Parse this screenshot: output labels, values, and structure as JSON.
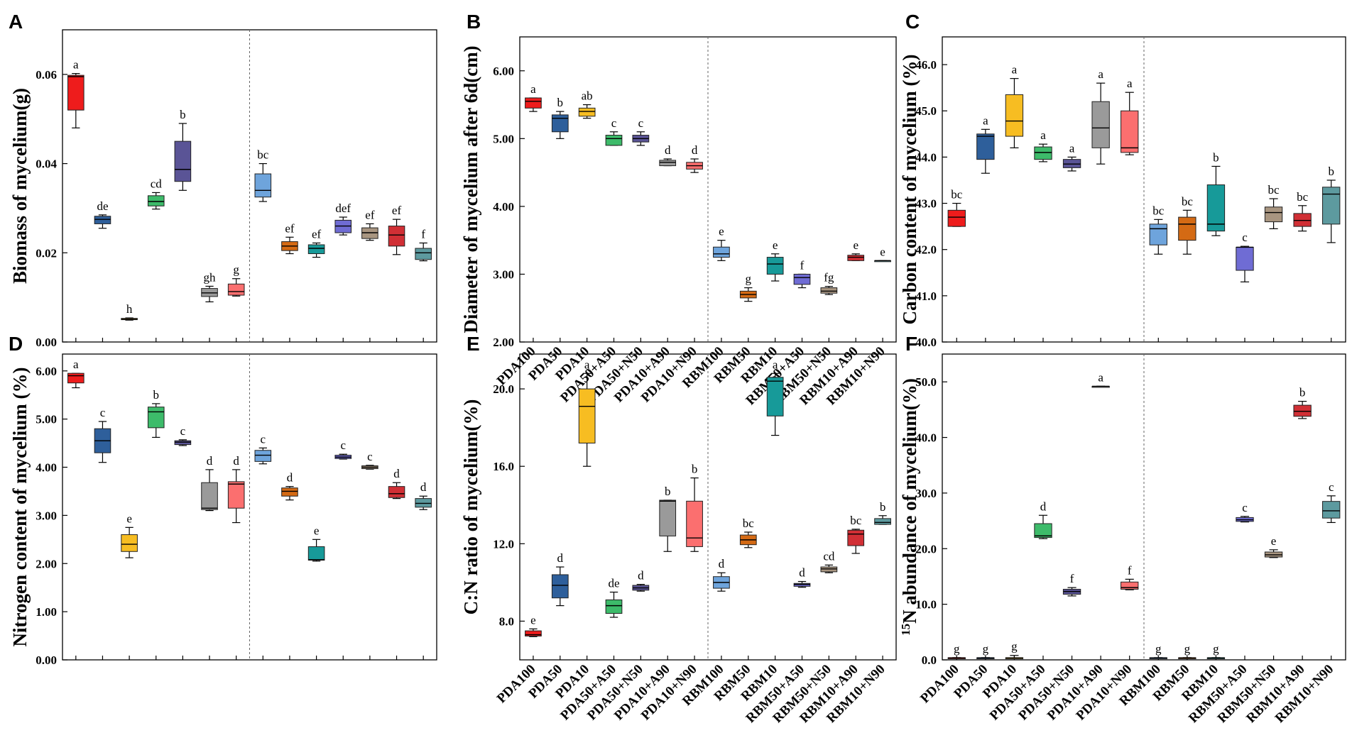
{
  "figure": {
    "categories": [
      "PDA100",
      "PDA50",
      "PDA10",
      "PDA50+A50",
      "PDA50+N50",
      "PDA10+A90",
      "PDA10+N90",
      "RBM100",
      "RBM50",
      "RBM10",
      "RBM50+A50",
      "RBM50+N50",
      "RBM10+A90",
      "RBM10+N90"
    ],
    "box_colors": [
      "#ee1c1c",
      "#2e5f9b",
      "#f7bd22",
      "#3dbb6a",
      "#5a5496",
      "#9a9a9a",
      "#fb6f6f",
      "#6ea4dc",
      "#d46a14",
      "#179a99",
      "#6f6cd4",
      "#a89580",
      "#d12f35",
      "#5d9a9f"
    ],
    "separator_style": "dashed"
  },
  "chart_data": [
    {
      "panel": "A",
      "type": "box",
      "ylabel": "Biomass of mycelium(g)",
      "ylim": [
        0,
        0.07
      ],
      "yticks": [
        0,
        0.02,
        0.04,
        0.06
      ],
      "ytick_labels": [
        "0.00",
        "0.02",
        "0.04",
        "0.06"
      ],
      "show_xlabels": false,
      "boxes": [
        {
          "min": 0.048,
          "q1": 0.052,
          "median": 0.0595,
          "q3": 0.0598,
          "max": 0.0602,
          "label": "a"
        },
        {
          "min": 0.0255,
          "q1": 0.0265,
          "median": 0.0275,
          "q3": 0.0282,
          "max": 0.0285,
          "label": "de"
        },
        {
          "min": 0.0049,
          "q1": 0.005,
          "median": 0.0051,
          "q3": 0.0053,
          "max": 0.0054,
          "label": "h"
        },
        {
          "min": 0.0298,
          "q1": 0.0305,
          "median": 0.0315,
          "q3": 0.0328,
          "max": 0.0335,
          "label": "cd"
        },
        {
          "min": 0.034,
          "q1": 0.036,
          "median": 0.0387,
          "q3": 0.045,
          "max": 0.049,
          "label": "b"
        },
        {
          "min": 0.009,
          "q1": 0.0102,
          "median": 0.011,
          "q3": 0.012,
          "max": 0.0125,
          "label": "gh"
        },
        {
          "min": 0.0103,
          "q1": 0.0105,
          "median": 0.0113,
          "q3": 0.013,
          "max": 0.0142,
          "label": "g"
        },
        {
          "min": 0.0315,
          "q1": 0.0325,
          "median": 0.034,
          "q3": 0.0377,
          "max": 0.04,
          "label": "bc"
        },
        {
          "min": 0.0198,
          "q1": 0.0205,
          "median": 0.0215,
          "q3": 0.0225,
          "max": 0.0235,
          "label": "ef"
        },
        {
          "min": 0.019,
          "q1": 0.0198,
          "median": 0.021,
          "q3": 0.0218,
          "max": 0.0222,
          "label": "ef"
        },
        {
          "min": 0.024,
          "q1": 0.0245,
          "median": 0.026,
          "q3": 0.0273,
          "max": 0.028,
          "label": "def"
        },
        {
          "min": 0.0228,
          "q1": 0.0232,
          "median": 0.0245,
          "q3": 0.0256,
          "max": 0.0265,
          "label": "ef"
        },
        {
          "min": 0.0196,
          "q1": 0.0215,
          "median": 0.024,
          "q3": 0.026,
          "max": 0.0275,
          "label": "ef"
        },
        {
          "min": 0.0182,
          "q1": 0.0185,
          "median": 0.02,
          "q3": 0.021,
          "max": 0.0222,
          "label": "f"
        }
      ]
    },
    {
      "panel": "B",
      "type": "box",
      "ylabel": "Diameter of mycelium after 6d(cm)",
      "ylim": [
        2.0,
        6.5
      ],
      "yticks": [
        2,
        3,
        4,
        5,
        6
      ],
      "ytick_labels": [
        "2.00",
        "3.00",
        "4.00",
        "5.00",
        "6.00"
      ],
      "show_xlabels": true,
      "boxes": [
        {
          "min": 5.4,
          "q1": 5.45,
          "median": 5.55,
          "q3": 5.6,
          "max": 5.6,
          "label": "a"
        },
        {
          "min": 5.0,
          "q1": 5.1,
          "median": 5.3,
          "q3": 5.35,
          "max": 5.4,
          "label": "b"
        },
        {
          "min": 5.3,
          "q1": 5.33,
          "median": 5.4,
          "q3": 5.45,
          "max": 5.5,
          "label": "ab"
        },
        {
          "min": 4.9,
          "q1": 4.9,
          "median": 5.0,
          "q3": 5.05,
          "max": 5.1,
          "label": "c"
        },
        {
          "min": 4.9,
          "q1": 4.95,
          "median": 5.0,
          "q3": 5.05,
          "max": 5.1,
          "label": "c"
        },
        {
          "min": 4.6,
          "q1": 4.6,
          "median": 4.65,
          "q3": 4.68,
          "max": 4.7,
          "label": "d"
        },
        {
          "min": 4.5,
          "q1": 4.55,
          "median": 4.6,
          "q3": 4.65,
          "max": 4.7,
          "label": "d"
        },
        {
          "min": 3.2,
          "q1": 3.25,
          "median": 3.3,
          "q3": 3.4,
          "max": 3.5,
          "label": "e"
        },
        {
          "min": 2.6,
          "q1": 2.65,
          "median": 2.7,
          "q3": 2.75,
          "max": 2.8,
          "label": "g"
        },
        {
          "min": 2.9,
          "q1": 3.0,
          "median": 3.15,
          "q3": 3.25,
          "max": 3.3,
          "label": "e"
        },
        {
          "min": 2.8,
          "q1": 2.85,
          "median": 2.95,
          "q3": 3.0,
          "max": 3.0,
          "label": "f"
        },
        {
          "min": 2.7,
          "q1": 2.72,
          "median": 2.75,
          "q3": 2.8,
          "max": 2.82,
          "label": "fg"
        },
        {
          "min": 3.2,
          "q1": 3.2,
          "median": 3.25,
          "q3": 3.28,
          "max": 3.3,
          "label": "e"
        },
        {
          "min": 3.2,
          "q1": 3.2,
          "median": 3.2,
          "q3": 3.2,
          "max": 3.2,
          "label": "e"
        }
      ]
    },
    {
      "panel": "C",
      "type": "box",
      "ylabel": "Carbon content of mycelium (%)",
      "ylim": [
        40.0,
        46.6
      ],
      "yticks": [
        40,
        41,
        42,
        43,
        44,
        45,
        46
      ],
      "ytick_labels": [
        "40.0",
        "41.0",
        "42.0",
        "43.0",
        "44.0",
        "45.0",
        "46.0"
      ],
      "show_xlabels": false,
      "boxes": [
        {
          "min": 42.5,
          "q1": 42.5,
          "median": 42.7,
          "q3": 42.85,
          "max": 43.0,
          "label": "bc"
        },
        {
          "min": 43.65,
          "q1": 43.95,
          "median": 44.45,
          "q3": 44.5,
          "max": 44.6,
          "label": "a"
        },
        {
          "min": 44.2,
          "q1": 44.45,
          "median": 44.78,
          "q3": 45.35,
          "max": 45.7,
          "label": "a"
        },
        {
          "min": 43.9,
          "q1": 43.95,
          "median": 44.1,
          "q3": 44.22,
          "max": 44.28,
          "label": "a"
        },
        {
          "min": 43.7,
          "q1": 43.77,
          "median": 43.85,
          "q3": 43.95,
          "max": 44.0,
          "label": "a"
        },
        {
          "min": 43.85,
          "q1": 44.2,
          "median": 44.63,
          "q3": 45.2,
          "max": 45.6,
          "label": "a"
        },
        {
          "min": 44.05,
          "q1": 44.1,
          "median": 44.2,
          "q3": 45.0,
          "max": 45.4,
          "label": "a"
        },
        {
          "min": 41.9,
          "q1": 42.1,
          "median": 42.45,
          "q3": 42.55,
          "max": 42.65,
          "label": "bc"
        },
        {
          "min": 41.9,
          "q1": 42.2,
          "median": 42.55,
          "q3": 42.7,
          "max": 42.85,
          "label": "bc"
        },
        {
          "min": 42.3,
          "q1": 42.4,
          "median": 42.55,
          "q3": 43.4,
          "max": 43.8,
          "label": "b"
        },
        {
          "min": 41.3,
          "q1": 41.55,
          "median": 42.05,
          "q3": 42.05,
          "max": 42.07,
          "label": "c"
        },
        {
          "min": 42.45,
          "q1": 42.6,
          "median": 42.8,
          "q3": 42.92,
          "max": 43.1,
          "label": "bc"
        },
        {
          "min": 42.4,
          "q1": 42.5,
          "median": 42.63,
          "q3": 42.78,
          "max": 42.95,
          "label": "bc"
        },
        {
          "min": 42.15,
          "q1": 42.55,
          "median": 43.2,
          "q3": 43.35,
          "max": 43.5,
          "label": "b"
        }
      ]
    },
    {
      "panel": "D",
      "type": "box",
      "ylabel": "Nitrogen content of mycelium (%)",
      "ylim": [
        0,
        6.35
      ],
      "yticks": [
        0,
        1,
        2,
        3,
        4,
        5,
        6
      ],
      "ytick_labels": [
        "0.00",
        "1.00",
        "2.00",
        "3.00",
        "4.00",
        "5.00",
        "6.00"
      ],
      "show_xlabels": false,
      "boxes": [
        {
          "min": 5.65,
          "q1": 5.75,
          "median": 5.9,
          "q3": 5.95,
          "max": 5.95,
          "label": "a"
        },
        {
          "min": 4.1,
          "q1": 4.3,
          "median": 4.55,
          "q3": 4.8,
          "max": 4.95,
          "label": "c"
        },
        {
          "min": 2.12,
          "q1": 2.25,
          "median": 2.4,
          "q3": 2.6,
          "max": 2.75,
          "label": "e"
        },
        {
          "min": 4.62,
          "q1": 4.82,
          "median": 5.15,
          "q3": 5.25,
          "max": 5.32,
          "label": "b"
        },
        {
          "min": 4.45,
          "q1": 4.47,
          "median": 4.52,
          "q3": 4.55,
          "max": 4.57,
          "label": "c"
        },
        {
          "min": 3.1,
          "q1": 3.12,
          "median": 3.15,
          "q3": 3.68,
          "max": 3.95,
          "label": "d"
        },
        {
          "min": 2.85,
          "q1": 3.15,
          "median": 3.65,
          "q3": 3.7,
          "max": 3.95,
          "label": "d"
        },
        {
          "min": 4.07,
          "q1": 4.12,
          "median": 4.25,
          "q3": 4.35,
          "max": 4.4,
          "label": "c"
        },
        {
          "min": 3.32,
          "q1": 3.4,
          "median": 3.5,
          "q3": 3.57,
          "max": 3.6,
          "label": "d"
        },
        {
          "min": 2.05,
          "q1": 2.07,
          "median": 2.08,
          "q3": 2.35,
          "max": 2.5,
          "label": "e"
        },
        {
          "min": 4.17,
          "q1": 4.18,
          "median": 4.21,
          "q3": 4.25,
          "max": 4.27,
          "label": "c"
        },
        {
          "min": 3.96,
          "q1": 3.97,
          "median": 4.0,
          "q3": 4.03,
          "max": 4.04,
          "label": "c"
        },
        {
          "min": 3.35,
          "q1": 3.37,
          "median": 3.45,
          "q3": 3.6,
          "max": 3.68,
          "label": "d"
        },
        {
          "min": 3.12,
          "q1": 3.17,
          "median": 3.25,
          "q3": 3.35,
          "max": 3.4,
          "label": "d"
        }
      ]
    },
    {
      "panel": "E",
      "type": "box",
      "ylabel": "C:N ratio of mycelium(%)",
      "ylim": [
        6.0,
        21.8
      ],
      "yticks": [
        8,
        12,
        16,
        20
      ],
      "ytick_labels": [
        "8.0",
        "12.0",
        "16.0",
        "20.0"
      ],
      "show_xlabels": true,
      "boxes": [
        {
          "min": 7.2,
          "q1": 7.23,
          "median": 7.3,
          "q3": 7.5,
          "max": 7.6,
          "label": "e"
        },
        {
          "min": 8.8,
          "q1": 9.2,
          "median": 9.85,
          "q3": 10.4,
          "max": 10.8,
          "label": "d"
        },
        {
          "min": 16.0,
          "q1": 17.2,
          "median": 19.1,
          "q3": 20.0,
          "max": 20.8,
          "label": "a"
        },
        {
          "min": 8.2,
          "q1": 8.4,
          "median": 8.8,
          "q3": 9.1,
          "max": 9.5,
          "label": "de"
        },
        {
          "min": 9.55,
          "q1": 9.6,
          "median": 9.72,
          "q3": 9.85,
          "max": 9.9,
          "label": "d"
        },
        {
          "min": 11.6,
          "q1": 12.4,
          "median": 14.2,
          "q3": 14.25,
          "max": 14.25,
          "label": "b"
        },
        {
          "min": 11.6,
          "q1": 11.85,
          "median": 12.3,
          "q3": 14.2,
          "max": 15.4,
          "label": "b"
        },
        {
          "min": 9.55,
          "q1": 9.7,
          "median": 10.0,
          "q3": 10.3,
          "max": 10.5,
          "label": "d"
        },
        {
          "min": 11.8,
          "q1": 11.95,
          "median": 12.2,
          "q3": 12.45,
          "max": 12.6,
          "label": "bc"
        },
        {
          "min": 17.6,
          "q1": 18.6,
          "median": 20.4,
          "q3": 20.6,
          "max": 20.8,
          "label": "a"
        },
        {
          "min": 9.75,
          "q1": 9.8,
          "median": 9.9,
          "q3": 9.95,
          "max": 10.05,
          "label": "d"
        },
        {
          "min": 10.5,
          "q1": 10.55,
          "median": 10.7,
          "q3": 10.8,
          "max": 10.9,
          "label": "cd"
        },
        {
          "min": 11.5,
          "q1": 11.9,
          "median": 12.5,
          "q3": 12.7,
          "max": 12.75,
          "label": "bc"
        },
        {
          "min": 13.0,
          "q1": 13.0,
          "median": 13.1,
          "q3": 13.3,
          "max": 13.45,
          "label": "b"
        }
      ]
    },
    {
      "panel": "F",
      "type": "box",
      "ylabel": "15N abundance of mycelium(%)",
      "ylabel_superscript": "15",
      "ylabel_rest": "N abundance of mycelium(%)",
      "ylim": [
        0,
        55
      ],
      "yticks": [
        0,
        10,
        20,
        30,
        40,
        50
      ],
      "ytick_labels": [
        "0.0",
        "10.0",
        "20.0",
        "30.0",
        "40.0",
        "50.0"
      ],
      "show_xlabels": true,
      "boxes": [
        {
          "min": 0.35,
          "q1": 0.37,
          "median": 0.37,
          "q3": 0.38,
          "max": 0.4,
          "label": "g"
        },
        {
          "min": 0.35,
          "q1": 0.37,
          "median": 0.37,
          "q3": 0.38,
          "max": 0.4,
          "label": "g"
        },
        {
          "min": 0.35,
          "q1": 0.37,
          "median": 0.37,
          "q3": 0.38,
          "max": 0.8,
          "label": "g"
        },
        {
          "min": 21.8,
          "q1": 22.0,
          "median": 22.3,
          "q3": 24.5,
          "max": 26.0,
          "label": "d"
        },
        {
          "min": 11.5,
          "q1": 11.8,
          "median": 12.3,
          "q3": 12.7,
          "max": 13.0,
          "label": "f"
        },
        {
          "min": 49.2,
          "q1": 49.2,
          "median": 49.2,
          "q3": 49.2,
          "max": 49.2,
          "label": "a"
        },
        {
          "min": 12.6,
          "q1": 12.7,
          "median": 13.0,
          "q3": 14.0,
          "max": 14.5,
          "label": "f"
        },
        {
          "min": 0.35,
          "q1": 0.37,
          "median": 0.37,
          "q3": 0.38,
          "max": 0.4,
          "label": "g"
        },
        {
          "min": 0.35,
          "q1": 0.37,
          "median": 0.37,
          "q3": 0.38,
          "max": 0.4,
          "label": "g"
        },
        {
          "min": 0.35,
          "q1": 0.37,
          "median": 0.37,
          "q3": 0.38,
          "max": 0.4,
          "label": "g"
        },
        {
          "min": 24.8,
          "q1": 24.9,
          "median": 25.2,
          "q3": 25.6,
          "max": 25.8,
          "label": "c"
        },
        {
          "min": 18.4,
          "q1": 18.5,
          "median": 18.9,
          "q3": 19.4,
          "max": 19.8,
          "label": "e"
        },
        {
          "min": 43.4,
          "q1": 43.8,
          "median": 44.7,
          "q3": 45.8,
          "max": 46.5,
          "label": "b"
        },
        {
          "min": 24.7,
          "q1": 25.5,
          "median": 26.8,
          "q3": 28.5,
          "max": 29.5,
          "label": "c"
        }
      ]
    }
  ]
}
